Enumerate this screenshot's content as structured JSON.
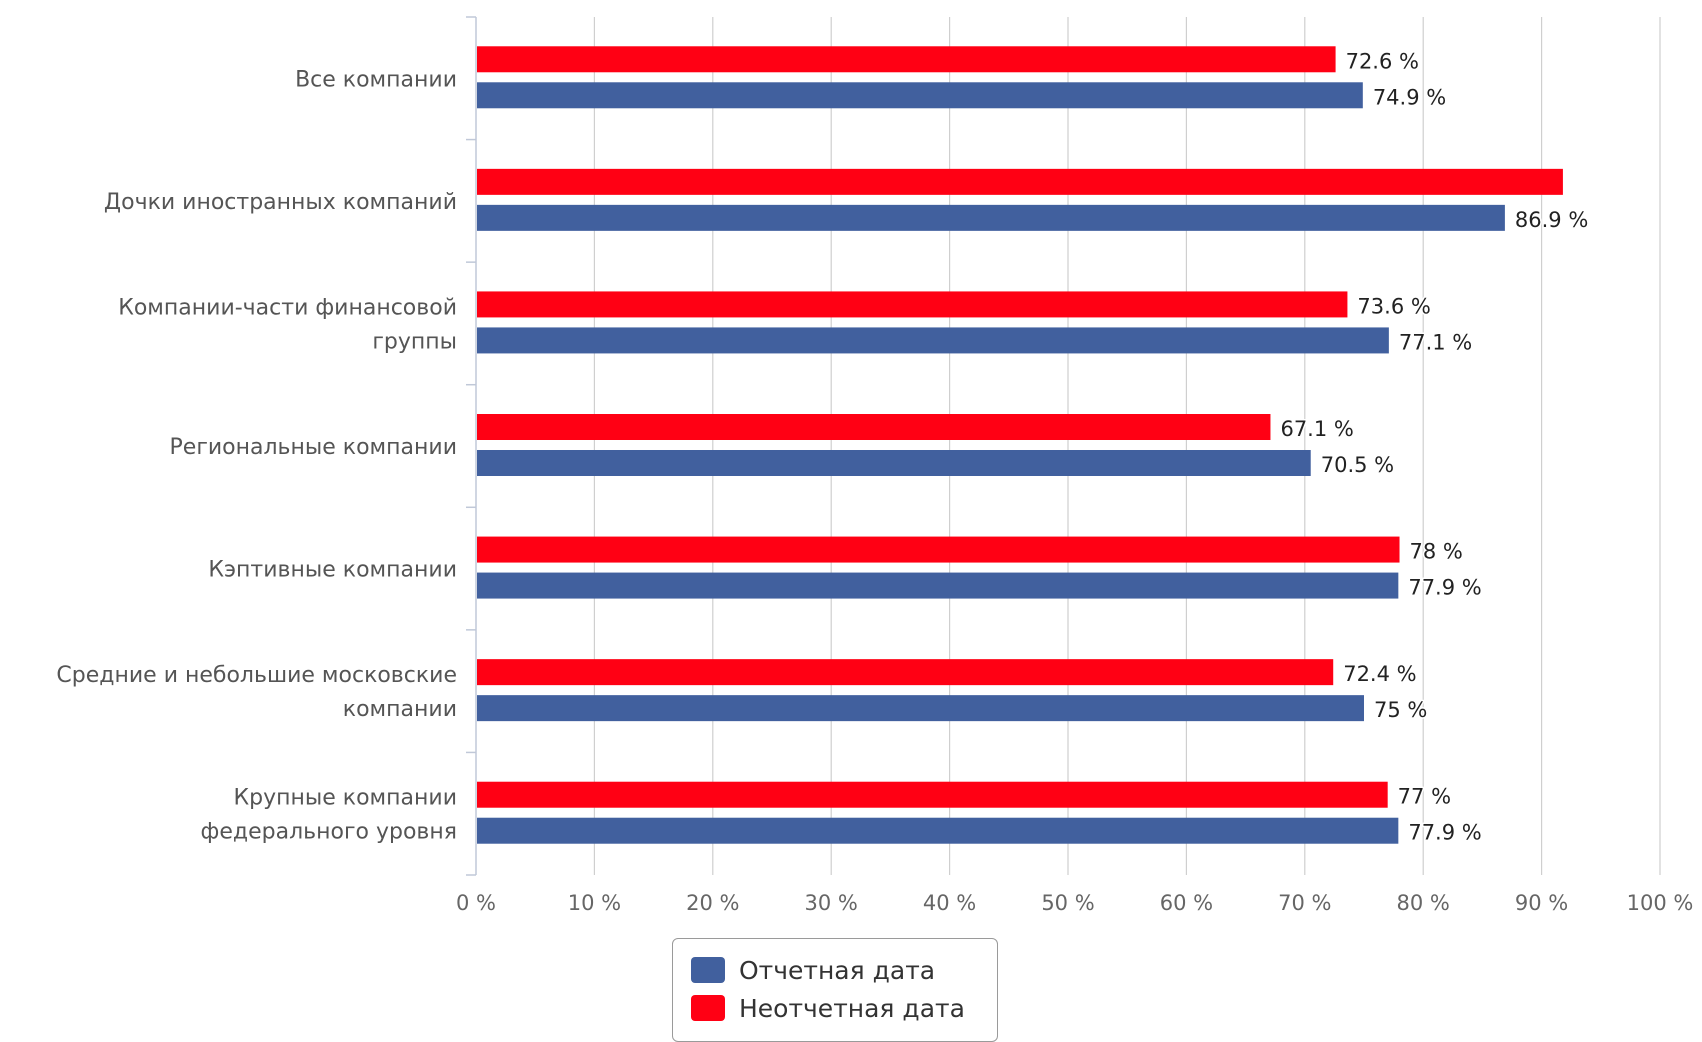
{
  "chart_data": {
    "type": "bar",
    "orientation": "horizontal",
    "categories": [
      [
        "Все компании"
      ],
      [
        "Дочки иностранных компаний"
      ],
      [
        "Компании-части финансовой",
        "группы"
      ],
      [
        "Региональные компании"
      ],
      [
        "Кэптивные компании"
      ],
      [
        "Средние и небольшие московские",
        "компании"
      ],
      [
        "Крупные компании",
        "федерального уровня"
      ]
    ],
    "series": [
      {
        "name": "Неотчетная дата",
        "color": "#ff0014",
        "values": [
          72.6,
          91.8,
          73.6,
          67.1,
          78,
          72.4,
          77
        ],
        "labels": [
          "72.6 %",
          "",
          "73.6 %",
          "67.1 %",
          "78 %",
          "72.4 %",
          "77 %"
        ]
      },
      {
        "name": "Отчетная дата",
        "color": "#41609e",
        "values": [
          74.9,
          86.9,
          77.1,
          70.5,
          77.9,
          75,
          77.9
        ],
        "labels": [
          "74.9 %",
          "86.9 %",
          "77.1 %",
          "70.5 %",
          "77.9 %",
          "75 %",
          "77.9 %"
        ]
      }
    ],
    "xlim": [
      0,
      100
    ],
    "ticks": [
      "0 %",
      "10 %",
      "20 %",
      "30 %",
      "40 %",
      "50 %",
      "60 %",
      "70 %",
      "80 %",
      "90 %",
      "100 %"
    ],
    "grid": true,
    "legend_position": "bottom-center"
  },
  "legend": {
    "items": [
      {
        "label": "Отчетная дата",
        "color": "#41609e"
      },
      {
        "label": "Неотчетная дата",
        "color": "#ff0014"
      }
    ]
  }
}
